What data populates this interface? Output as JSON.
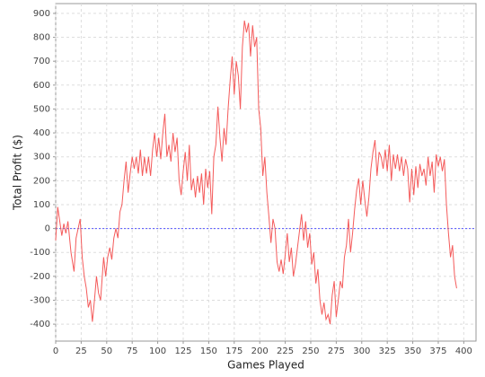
{
  "chart_data": {
    "type": "line",
    "x_label": "Games Played",
    "y_label": "Total Profit ($)",
    "x": [
      0,
      2,
      4,
      6,
      8,
      10,
      12,
      15,
      18,
      20,
      22,
      24,
      26,
      28,
      30,
      32,
      34,
      36,
      38,
      40,
      42,
      44,
      47,
      49,
      51,
      53,
      55,
      57,
      59,
      61,
      63,
      65,
      67,
      69,
      71,
      73,
      75,
      77,
      79,
      81,
      83,
      85,
      87,
      89,
      91,
      93,
      95,
      97,
      99,
      101,
      103,
      105,
      107,
      109,
      111,
      113,
      115,
      117,
      119,
      121,
      123,
      125,
      127,
      129,
      131,
      133,
      135,
      137,
      139,
      141,
      143,
      145,
      147,
      149,
      151,
      153,
      155,
      157,
      159,
      161,
      163,
      165,
      167,
      169,
      171,
      173,
      175,
      177,
      179,
      181,
      183,
      185,
      187,
      189,
      191,
      193,
      195,
      197,
      199,
      201,
      203,
      205,
      207,
      209,
      211,
      213,
      215,
      217,
      219,
      221,
      223,
      225,
      227,
      229,
      231,
      233,
      235,
      237,
      239,
      241,
      243,
      245,
      247,
      249,
      251,
      253,
      255,
      257,
      259,
      261,
      263,
      265,
      267,
      269,
      271,
      273,
      275,
      277,
      279,
      281,
      283,
      285,
      287,
      289,
      291,
      293,
      295,
      297,
      299,
      301,
      303,
      305,
      307,
      309,
      311,
      313,
      315,
      317,
      319,
      321,
      323,
      325,
      327,
      329,
      331,
      333,
      335,
      337,
      339,
      341,
      343,
      345,
      347,
      349,
      351,
      353,
      355,
      357,
      359,
      361,
      363,
      365,
      367,
      369,
      371,
      373,
      375,
      377,
      379,
      381,
      383,
      385,
      387,
      389,
      391,
      393
    ],
    "series": [
      {
        "name": "Total Profit",
        "color": "#f45b5b",
        "values": [
          -50,
          90,
          30,
          -30,
          20,
          -20,
          30,
          -100,
          -180,
          -40,
          0,
          40,
          -120,
          -200,
          -250,
          -330,
          -300,
          -390,
          -300,
          -200,
          -270,
          -300,
          -120,
          -200,
          -120,
          -80,
          -130,
          -40,
          0,
          -40,
          70,
          100,
          200,
          280,
          150,
          230,
          300,
          250,
          300,
          230,
          330,
          220,
          300,
          230,
          300,
          220,
          330,
          400,
          300,
          380,
          290,
          400,
          480,
          300,
          350,
          280,
          400,
          320,
          380,
          200,
          140,
          240,
          320,
          200,
          350,
          160,
          210,
          130,
          220,
          150,
          230,
          100,
          250,
          170,
          240,
          60,
          300,
          350,
          510,
          380,
          280,
          420,
          350,
          500,
          620,
          720,
          560,
          700,
          640,
          500,
          760,
          870,
          820,
          860,
          720,
          850,
          760,
          800,
          500,
          420,
          220,
          300,
          150,
          50,
          -60,
          40,
          0,
          -140,
          -180,
          -130,
          -190,
          -110,
          -20,
          -140,
          -80,
          -200,
          -150,
          -80,
          -10,
          60,
          -50,
          30,
          -80,
          -20,
          -150,
          -100,
          -230,
          -170,
          -300,
          -360,
          -310,
          -380,
          -360,
          -400,
          -280,
          -220,
          -370,
          -300,
          -220,
          -250,
          -120,
          -70,
          40,
          -100,
          -20,
          80,
          160,
          210,
          100,
          200,
          120,
          50,
          130,
          250,
          320,
          370,
          220,
          320,
          300,
          250,
          330,
          240,
          350,
          200,
          310,
          250,
          310,
          240,
          300,
          220,
          290,
          250,
          110,
          250,
          140,
          260,
          170,
          270,
          220,
          250,
          180,
          300,
          220,
          280,
          150,
          310,
          260,
          300,
          240,
          290,
          100,
          -20,
          -120,
          -70,
          -200,
          -250
        ]
      }
    ],
    "xlim": [
      0,
      412
    ],
    "ylim": [
      -471,
      941
    ],
    "xticks": [
      0,
      25,
      50,
      75,
      100,
      125,
      150,
      175,
      200,
      225,
      250,
      275,
      300,
      325,
      350,
      375,
      400
    ],
    "yticks": [
      -400,
      -300,
      -200,
      -100,
      0,
      100,
      200,
      300,
      400,
      500,
      600,
      700,
      800,
      900
    ],
    "grid": true,
    "reference_line": {
      "value": 0,
      "color": "#5555ff"
    }
  }
}
